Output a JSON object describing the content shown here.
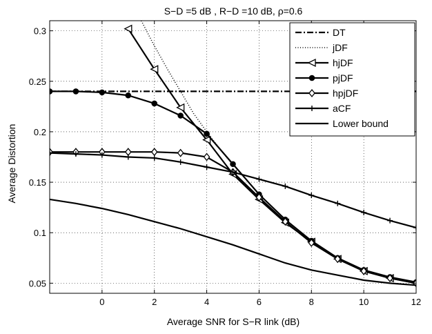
{
  "chart_data": {
    "type": "line",
    "title": "S−D =5 dB , R−D =10 dB, ρ=0.6",
    "xlabel": "Average SNR for S−R link (dB)",
    "ylabel": "Average Distortion",
    "xlim": [
      -2,
      12
    ],
    "ylim": [
      0.04,
      0.31
    ],
    "xticks": [
      0,
      2,
      4,
      6,
      8,
      10,
      12
    ],
    "xtick_labels": [
      "0",
      "2",
      "4",
      "6",
      "8",
      "10",
      "12"
    ],
    "yticks": [
      0.05,
      0.1,
      0.15,
      0.2,
      0.25,
      0.3
    ],
    "ytick_labels": [
      "0.05",
      "0.1",
      "0.15",
      "0.2",
      "0.25",
      "0.3"
    ],
    "grid": true,
    "legend_position": "top-right",
    "series": [
      {
        "name": "DT",
        "style": "dashdot",
        "marker": "none",
        "x": [
          -2,
          12
        ],
        "y": [
          0.24,
          0.24
        ]
      },
      {
        "name": "jDF",
        "style": "dotted",
        "marker": "none",
        "x": [
          1.5,
          2,
          2.5,
          3,
          3.5,
          4,
          4.5,
          5
        ],
        "y": [
          0.31,
          0.285,
          0.262,
          0.24,
          0.218,
          0.2,
          0.183,
          0.167
        ]
      },
      {
        "name": "hjDF",
        "style": "solid",
        "marker": "triangle-left",
        "x": [
          1,
          2,
          3,
          4,
          5,
          6,
          7,
          8,
          9,
          10,
          11,
          12
        ],
        "y": [
          0.302,
          0.262,
          0.224,
          0.192,
          0.158,
          0.133,
          0.11,
          0.091,
          0.074,
          0.062,
          0.055,
          0.05
        ]
      },
      {
        "name": "pjDF",
        "style": "solid",
        "marker": "circle",
        "x": [
          -2,
          -1,
          0,
          1,
          2,
          3,
          4,
          5,
          6,
          7,
          8,
          9,
          10,
          11,
          12
        ],
        "y": [
          0.24,
          0.24,
          0.239,
          0.236,
          0.228,
          0.216,
          0.198,
          0.168,
          0.138,
          0.113,
          0.092,
          0.075,
          0.063,
          0.056,
          0.051
        ]
      },
      {
        "name": "hpjDF",
        "style": "solid",
        "marker": "diamond",
        "x": [
          -2,
          -1,
          0,
          1,
          2,
          3,
          4,
          5,
          6,
          7,
          8,
          9,
          10,
          11,
          12
        ],
        "y": [
          0.18,
          0.18,
          0.18,
          0.18,
          0.18,
          0.179,
          0.175,
          0.16,
          0.135,
          0.111,
          0.09,
          0.074,
          0.062,
          0.055,
          0.05
        ]
      },
      {
        "name": "aCF",
        "style": "solid",
        "marker": "plus",
        "x": [
          -2,
          -1,
          0,
          1,
          2,
          3,
          4,
          5,
          6,
          7,
          8,
          9,
          10,
          11,
          12
        ],
        "y": [
          0.179,
          0.178,
          0.177,
          0.175,
          0.174,
          0.17,
          0.165,
          0.16,
          0.153,
          0.146,
          0.137,
          0.129,
          0.12,
          0.112,
          0.105
        ]
      },
      {
        "name": "Lower bound",
        "style": "solid",
        "marker": "none",
        "x": [
          -2,
          -1,
          0,
          1,
          2,
          3,
          4,
          5,
          6,
          7,
          8,
          9,
          10,
          11,
          12
        ],
        "y": [
          0.133,
          0.129,
          0.124,
          0.118,
          0.111,
          0.104,
          0.096,
          0.088,
          0.079,
          0.07,
          0.063,
          0.058,
          0.053,
          0.05,
          0.048
        ]
      }
    ]
  }
}
